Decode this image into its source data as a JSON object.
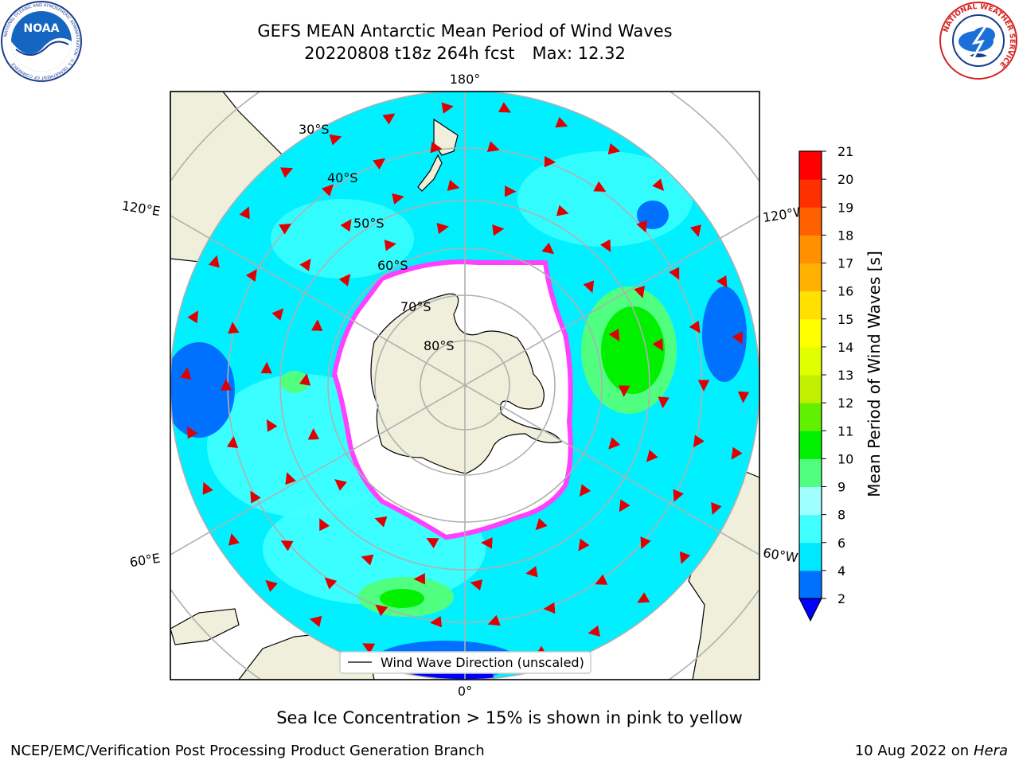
{
  "header": {
    "title_line1": "GEFS MEAN Antarctic Mean Period of Wind Waves",
    "title_date": "20220808 t18z 264h fcst",
    "title_max": "Max: 12.32"
  },
  "logos": {
    "noaa_text": "NOAA",
    "noaa_ring_text": "NATIONAL OCEANIC AND ATMOSPHERIC ADMINISTRATION · U.S. DEPARTMENT OF COMMERCE",
    "nws_ring_text": "NATIONAL WEATHER SERVICE"
  },
  "map": {
    "meridian_labels": {
      "top": "180°",
      "bottom": "0°",
      "left_upper": "120°E",
      "left_lower": "60°E",
      "right_upper": "120°W",
      "right_lower": "60°W"
    },
    "latitude_labels": [
      "30°S",
      "40°S",
      "50°S",
      "60°S",
      "70°S",
      "80°S"
    ],
    "legend_label": "Wind Wave Direction (unscaled)",
    "colors": {
      "land": "#efefdb",
      "ocean_base": "#00f0ff",
      "ice": "#ffffff",
      "ice_edge": "#ff40ff",
      "arrow": "#e00000",
      "grid": "#b0b0b0"
    }
  },
  "colorbar": {
    "title": "Mean Period of Wind Waves [s]",
    "ticks": [
      "2",
      "4",
      "6",
      "8",
      "9",
      "10",
      "11",
      "12",
      "13",
      "14",
      "15",
      "16",
      "17",
      "18",
      "19",
      "20",
      "21"
    ],
    "colors": [
      "#0070ff",
      "#00e8ff",
      "#40ffff",
      "#a0ffff",
      "#50ff80",
      "#00f000",
      "#60f000",
      "#c0f000",
      "#e0ff00",
      "#ffff00",
      "#ffe000",
      "#ffb000",
      "#ff9000",
      "#ff6000",
      "#ff3000",
      "#ff0000"
    ],
    "under_color": "#0000ff"
  },
  "caption": "Sea Ice Concentration > 15% is shown in pink to yellow",
  "footer": {
    "left": "NCEP/EMC/Verification Post Processing Product Generation Branch",
    "right_date": "10 Aug 2022 on",
    "right_machine": "Hera"
  }
}
